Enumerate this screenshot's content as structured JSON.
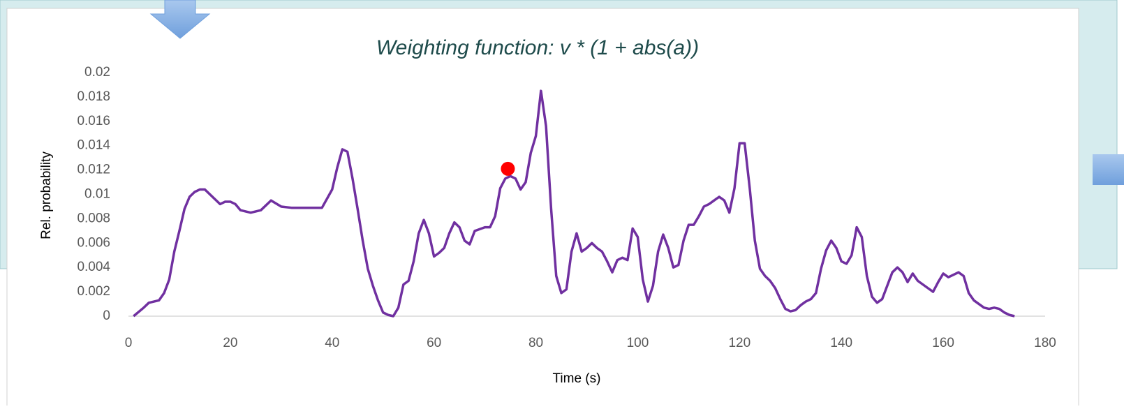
{
  "chart_data": {
    "type": "line",
    "title": "Weighting function: v * (1 + abs(a))",
    "x_label": "Time (s)",
    "y_label": "Rel. probability",
    "xlim": [
      0,
      180
    ],
    "xticks": [
      0,
      20,
      40,
      60,
      80,
      100,
      120,
      140,
      160,
      180
    ],
    "ylim": [
      0,
      0.02
    ],
    "yticks": [
      0,
      0.002,
      0.004,
      0.006,
      0.008,
      0.01,
      0.012,
      0.014,
      0.016,
      0.018,
      0.02
    ],
    "grid": false,
    "x": [
      1,
      3,
      4,
      6,
      7,
      8,
      9,
      10,
      11,
      12,
      13,
      14,
      15,
      16,
      18,
      19,
      20,
      21,
      22,
      24,
      26,
      28,
      30,
      32,
      36,
      38,
      40,
      41,
      42,
      43,
      44,
      45,
      46,
      47,
      48,
      49,
      50,
      51,
      52,
      53,
      54,
      55,
      56,
      57,
      58,
      59,
      60,
      61,
      62,
      63,
      64,
      65,
      66,
      67,
      68,
      70,
      71,
      72,
      73,
      74,
      75,
      76,
      77,
      78,
      79,
      80,
      81,
      82,
      83,
      84,
      85,
      86,
      87,
      88,
      89,
      90,
      91,
      92,
      93,
      94,
      95,
      96,
      97,
      98,
      99,
      100,
      101,
      102,
      103,
      104,
      105,
      106,
      107,
      108,
      109,
      110,
      111,
      112,
      113,
      114,
      115,
      116,
      117,
      118,
      119,
      120,
      121,
      122,
      123,
      124,
      125,
      126,
      127,
      128,
      129,
      130,
      131,
      132,
      133,
      134,
      135,
      136,
      137,
      138,
      139,
      140,
      141,
      142,
      143,
      144,
      145,
      146,
      147,
      148,
      149,
      150,
      151,
      152,
      153,
      154,
      155,
      156,
      157,
      158,
      159,
      160,
      161,
      162,
      163,
      164,
      165,
      166,
      167,
      168,
      169,
      170,
      171,
      172,
      173,
      174
    ],
    "series": [
      {
        "color": "#7030a0",
        "values": [
          0,
          0.0007,
          0.0011,
          0.0013,
          0.0019,
          0.003,
          0.0053,
          0.007,
          0.0088,
          0.0098,
          0.0102,
          0.0104,
          0.0104,
          0.01,
          0.0092,
          0.0094,
          0.0094,
          0.0092,
          0.0087,
          0.0085,
          0.0087,
          0.0095,
          0.009,
          0.0089,
          0.0089,
          0.0089,
          0.0104,
          0.0122,
          0.0137,
          0.0135,
          0.0113,
          0.0088,
          0.0062,
          0.0039,
          0.0025,
          0.0013,
          0.0003,
          0.0001,
          0,
          0.0007,
          0.0026,
          0.0029,
          0.0045,
          0.0068,
          0.0079,
          0.0068,
          0.0049,
          0.0052,
          0.0056,
          0.0068,
          0.0077,
          0.0073,
          0.0062,
          0.0059,
          0.007,
          0.0073,
          0.0073,
          0.0082,
          0.0105,
          0.0113,
          0.0115,
          0.0113,
          0.0104,
          0.011,
          0.0134,
          0.0148,
          0.0185,
          0.0156,
          0.0088,
          0.0033,
          0.0019,
          0.0022,
          0.0053,
          0.0068,
          0.0053,
          0.0056,
          0.006,
          0.0056,
          0.0053,
          0.0045,
          0.0036,
          0.0046,
          0.0048,
          0.0046,
          0.0072,
          0.0065,
          0.003,
          0.0012,
          0.0025,
          0.0053,
          0.0067,
          0.0056,
          0.004,
          0.0042,
          0.0062,
          0.0075,
          0.0075,
          0.0082,
          0.009,
          0.0092,
          0.0095,
          0.0098,
          0.0095,
          0.0085,
          0.0105,
          0.0142,
          0.0142,
          0.0105,
          0.0062,
          0.0039,
          0.0033,
          0.0029,
          0.0023,
          0.0014,
          0.0006,
          0.0004,
          0.0005,
          0.0009,
          0.0012,
          0.0014,
          0.0019,
          0.0039,
          0.0054,
          0.0062,
          0.0056,
          0.0045,
          0.0043,
          0.005,
          0.0073,
          0.0065,
          0.0033,
          0.0016,
          0.0011,
          0.0014,
          0.0025,
          0.0036,
          0.004,
          0.0036,
          0.0028,
          0.0035,
          0.0029,
          0.0026,
          0.0023,
          0.002,
          0.0028,
          0.0035,
          0.0032,
          0.0034,
          0.0036,
          0.0033,
          0.0019,
          0.0013,
          0.001,
          0.0007,
          0.0006,
          0.0007,
          0.0006,
          0.0003,
          0.0001,
          0
        ]
      }
    ],
    "points": [
      {
        "x": 74.5,
        "y": 0.0121,
        "color": "#ff0000"
      }
    ]
  }
}
